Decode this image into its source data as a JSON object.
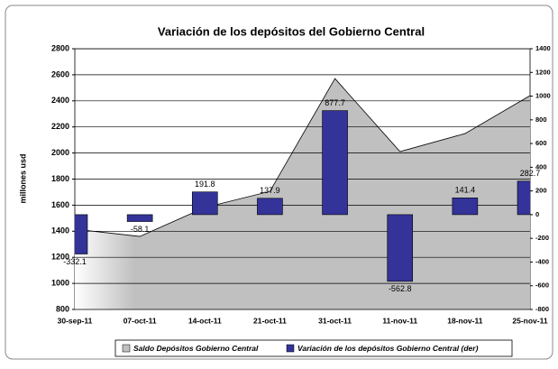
{
  "chart_data": {
    "type": "area-bar",
    "title": "Variación de los depósitos del Gobierno Central",
    "ylabel": "millones usd",
    "categories": [
      "30-sep-11",
      "07-oct-11",
      "14-oct-11",
      "21-oct-11",
      "31-oct-11",
      "11-nov-11",
      "18-nov-11",
      "25-nov-11"
    ],
    "series": [
      {
        "name": "Saldo Depósitos Gobierno Central",
        "color": "#c0c0c0",
        "type": "area",
        "values": [
          1416,
          1360,
          1582,
          1706,
          2571,
          2011,
          2149,
          2440
        ]
      },
      {
        "name": "Variación de los depósitos Gobierno Central (der)",
        "color": "#333399",
        "type": "bar",
        "axis": "y2",
        "values": [
          -332.1,
          -58.1,
          191.8,
          137.9,
          877.7,
          -562.8,
          141.4,
          282.7
        ]
      }
    ],
    "ylim": [
      800,
      2800
    ],
    "yticks": [
      800,
      1000,
      1200,
      1400,
      1600,
      1800,
      2000,
      2200,
      2400,
      2600,
      2800
    ],
    "y2lim": [
      -800,
      1400
    ],
    "y2ticks": [
      -800,
      -600,
      -400,
      -200,
      0,
      200,
      400,
      600,
      800,
      1000,
      1200,
      1400
    ],
    "grid": true,
    "legend": "bottom"
  }
}
